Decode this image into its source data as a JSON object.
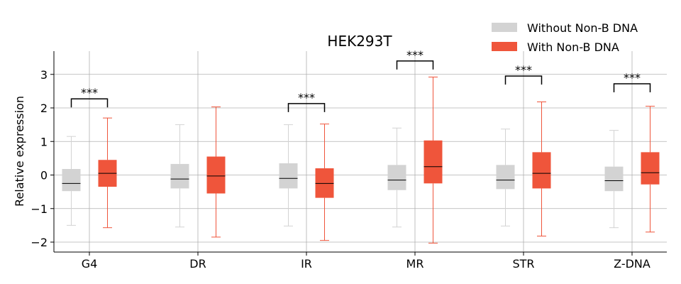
{
  "chart_data": {
    "type": "boxplot",
    "title": "HEK293T",
    "xlabel": "",
    "ylabel": "Relative expression",
    "ylim": [
      -2.3,
      3.7
    ],
    "yticks": [
      -2,
      -1,
      0,
      1,
      2,
      3
    ],
    "ytick_labels": [
      "−2",
      "−1",
      "0",
      "1",
      "2",
      "3"
    ],
    "grid": true,
    "legend_position": "top-right",
    "categories": [
      "G4",
      "DR",
      "IR",
      "MR",
      "STR",
      "Z-DNA"
    ],
    "series": [
      {
        "name": "Without Non-B DNA",
        "color": "#d3d3d3",
        "boxes": [
          {
            "whislo": -1.5,
            "q1": -0.48,
            "med": -0.25,
            "q3": 0.18,
            "whishi": 1.15
          },
          {
            "whislo": -1.55,
            "q1": -0.4,
            "med": -0.12,
            "q3": 0.33,
            "whishi": 1.5
          },
          {
            "whislo": -1.52,
            "q1": -0.4,
            "med": -0.1,
            "q3": 0.35,
            "whishi": 1.5
          },
          {
            "whislo": -1.55,
            "q1": -0.45,
            "med": -0.15,
            "q3": 0.3,
            "whishi": 1.4
          },
          {
            "whislo": -1.52,
            "q1": -0.42,
            "med": -0.15,
            "q3": 0.3,
            "whishi": 1.37
          },
          {
            "whislo": -1.57,
            "q1": -0.48,
            "med": -0.17,
            "q3": 0.25,
            "whishi": 1.33
          }
        ]
      },
      {
        "name": "With Non-B DNA",
        "color": "#ef553b",
        "boxes": [
          {
            "whislo": -1.57,
            "q1": -0.35,
            "med": 0.05,
            "q3": 0.45,
            "whishi": 1.7
          },
          {
            "whislo": -1.85,
            "q1": -0.55,
            "med": -0.03,
            "q3": 0.55,
            "whishi": 2.03
          },
          {
            "whislo": -1.95,
            "q1": -0.68,
            "med": -0.25,
            "q3": 0.2,
            "whishi": 1.52
          },
          {
            "whislo": -2.03,
            "q1": -0.25,
            "med": 0.25,
            "q3": 1.03,
            "whishi": 2.92
          },
          {
            "whislo": -1.82,
            "q1": -0.4,
            "med": 0.05,
            "q3": 0.68,
            "whishi": 2.18
          },
          {
            "whislo": -1.7,
            "q1": -0.28,
            "med": 0.07,
            "q3": 0.68,
            "whishi": 2.05
          }
        ]
      }
    ],
    "significance": [
      {
        "category": "G4",
        "label": "***",
        "y": 2.27
      },
      {
        "category": "DR",
        "label": "",
        "y": null
      },
      {
        "category": "IR",
        "label": "***",
        "y": 2.13
      },
      {
        "category": "MR",
        "label": "***",
        "y": 3.4
      },
      {
        "category": "STR",
        "label": "***",
        "y": 2.95
      },
      {
        "category": "Z-DNA",
        "label": "***",
        "y": 2.72
      }
    ]
  }
}
